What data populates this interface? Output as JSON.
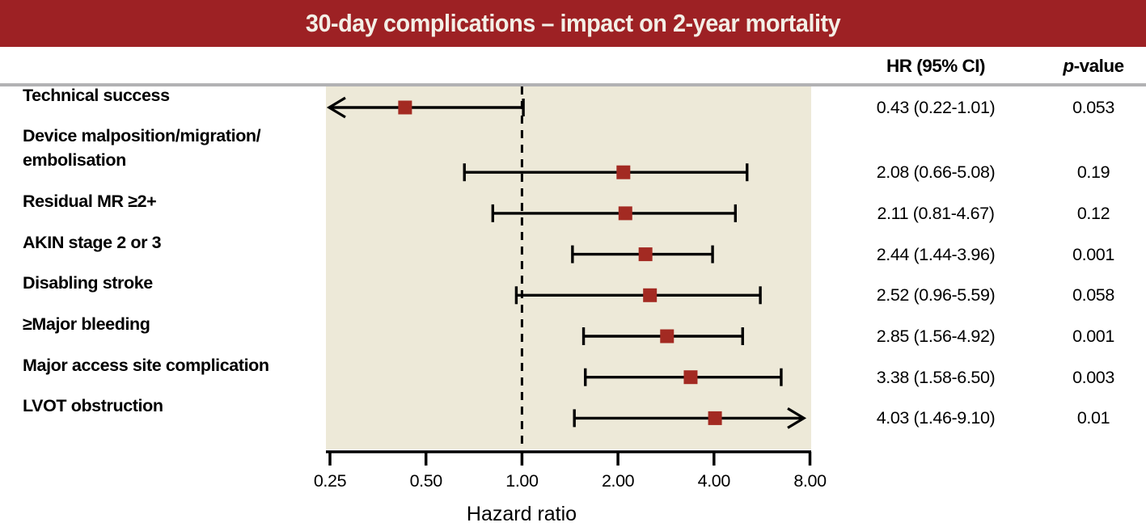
{
  "title": "30-day complications – impact on 2-year mortality",
  "columns": {
    "hr": "HR (95% CI)",
    "p_italic": "p",
    "p_suffix": "-value"
  },
  "chart_data": {
    "type": "forest",
    "title": "30-day complications – impact on 2-year mortality",
    "xlabel": "Hazard ratio",
    "x_scale": "log2",
    "xlim": [
      0.25,
      8
    ],
    "x_ticks": [
      0.25,
      0.5,
      1,
      2,
      4,
      8
    ],
    "x_tick_labels": [
      "0.25",
      "0.50",
      "1.00",
      "2.00",
      "4.00",
      "8.00"
    ],
    "reference_line": 1,
    "grid": false,
    "column_headers": [
      "HR (95% CI)",
      "p-value"
    ],
    "rows": [
      {
        "label": "Technical success",
        "hr": 0.43,
        "ci_low": 0.22,
        "ci_high": 1.01,
        "hr_text": "0.43 (0.22-1.01)",
        "p_text": "0.053",
        "arrow_low": true,
        "arrow_high": false
      },
      {
        "label": "Device malposition/migration/\nembolisation",
        "hr": 2.08,
        "ci_low": 0.66,
        "ci_high": 5.08,
        "hr_text": "2.08 (0.66-5.08)",
        "p_text": "0.19",
        "arrow_low": false,
        "arrow_high": false
      },
      {
        "label": "Residual MR ≥2+",
        "hr": 2.11,
        "ci_low": 0.81,
        "ci_high": 4.67,
        "hr_text": "2.11 (0.81-4.67)",
        "p_text": "0.12",
        "arrow_low": false,
        "arrow_high": false
      },
      {
        "label": "AKIN stage 2 or 3",
        "hr": 2.44,
        "ci_low": 1.44,
        "ci_high": 3.96,
        "hr_text": "2.44 (1.44-3.96)",
        "p_text": "0.001",
        "arrow_low": false,
        "arrow_high": false
      },
      {
        "label": "Disabling stroke",
        "hr": 2.52,
        "ci_low": 0.96,
        "ci_high": 5.59,
        "hr_text": "2.52 (0.96-5.59)",
        "p_text": "0.058",
        "arrow_low": false,
        "arrow_high": false
      },
      {
        "label": "≥Major bleeding",
        "hr": 2.85,
        "ci_low": 1.56,
        "ci_high": 4.92,
        "hr_text": "2.85 (1.56-4.92)",
        "p_text": "0.001",
        "arrow_low": false,
        "arrow_high": false
      },
      {
        "label": "Major access site complication",
        "hr": 3.38,
        "ci_low": 1.58,
        "ci_high": 6.5,
        "hr_text": "3.38 (1.58-6.50)",
        "p_text": "0.003",
        "arrow_low": false,
        "arrow_high": false
      },
      {
        "label": "LVOT obstruction",
        "hr": 4.03,
        "ci_low": 1.46,
        "ci_high": 9.1,
        "hr_text": "4.03 (1.46-9.10)",
        "p_text": "0.01",
        "arrow_low": false,
        "arrow_high": true
      }
    ]
  },
  "colors": {
    "header_bg": "#9d2124",
    "title_text": "#f3efe6",
    "marker": "#a32a22",
    "plot_bg": "#ede9d8",
    "divider": "#b2b2b4",
    "line": "#000000"
  }
}
